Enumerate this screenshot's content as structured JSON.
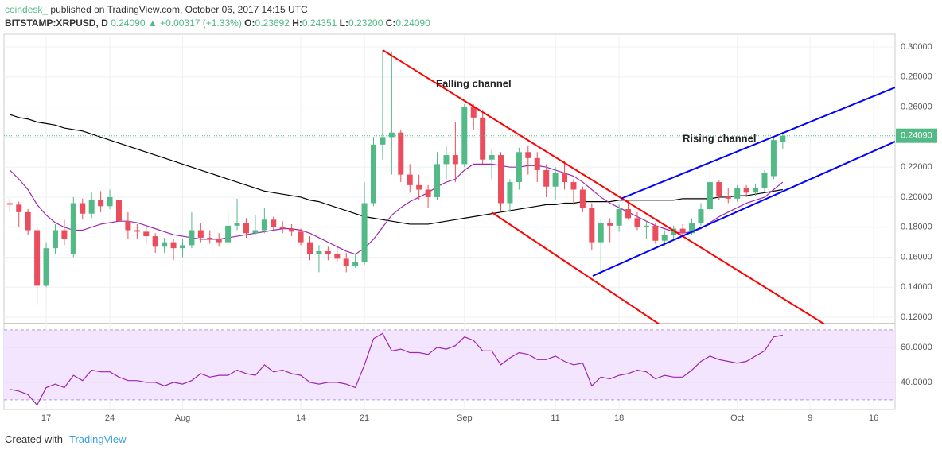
{
  "header": {
    "author": "coindesk_",
    "published": "published on TradingView.com, October 06, 2017 14:15 UTC",
    "symbol": "BITSTAMP:XRPUSD, D",
    "last": "0.24090",
    "change": "▲ +0.00317 (+1.33%)",
    "o_label": "O:",
    "o": "0.23692",
    "h_label": "H:",
    "h": "0.24351",
    "l_label": "L:",
    "l": "0.23200",
    "c_label": "C:",
    "c": "0.24090"
  },
  "footer": {
    "created": "Created with",
    "brand": "TradingView"
  },
  "chart_data": {
    "type": "candlestick",
    "up_color": "#53b987",
    "down_color": "#eb4d5c",
    "ohlc": [
      [
        0.196,
        0.199,
        0.19,
        0.195
      ],
      [
        0.195,
        0.197,
        0.18,
        0.19
      ],
      [
        0.19,
        0.192,
        0.175,
        0.178
      ],
      [
        0.178,
        0.18,
        0.128,
        0.141
      ],
      [
        0.141,
        0.17,
        0.14,
        0.166
      ],
      [
        0.166,
        0.182,
        0.162,
        0.178
      ],
      [
        0.178,
        0.185,
        0.168,
        0.172
      ],
      [
        0.162,
        0.2,
        0.16,
        0.196
      ],
      [
        0.196,
        0.199,
        0.185,
        0.189
      ],
      [
        0.189,
        0.203,
        0.186,
        0.198
      ],
      [
        0.198,
        0.204,
        0.19,
        0.194
      ],
      [
        0.194,
        0.205,
        0.192,
        0.2
      ],
      [
        0.198,
        0.2,
        0.182,
        0.184
      ],
      [
        0.184,
        0.19,
        0.172,
        0.178
      ],
      [
        0.178,
        0.182,
        0.172,
        0.177
      ],
      [
        0.177,
        0.18,
        0.17,
        0.174
      ],
      [
        0.174,
        0.176,
        0.163,
        0.167
      ],
      [
        0.167,
        0.173,
        0.163,
        0.17
      ],
      [
        0.17,
        0.172,
        0.158,
        0.166
      ],
      [
        0.166,
        0.172,
        0.16,
        0.168
      ],
      [
        0.168,
        0.19,
        0.166,
        0.178
      ],
      [
        0.178,
        0.183,
        0.17,
        0.173
      ],
      [
        0.173,
        0.178,
        0.169,
        0.172
      ],
      [
        0.172,
        0.176,
        0.167,
        0.17
      ],
      [
        0.17,
        0.19,
        0.169,
        0.181
      ],
      [
        0.181,
        0.199,
        0.178,
        0.183
      ],
      [
        0.183,
        0.186,
        0.173,
        0.176
      ],
      [
        0.176,
        0.188,
        0.175,
        0.178
      ],
      [
        0.178,
        0.193,
        0.176,
        0.185
      ],
      [
        0.185,
        0.187,
        0.178,
        0.18
      ],
      [
        0.18,
        0.184,
        0.176,
        0.179
      ],
      [
        0.179,
        0.182,
        0.174,
        0.177
      ],
      [
        0.177,
        0.179,
        0.168,
        0.17
      ],
      [
        0.17,
        0.174,
        0.158,
        0.162
      ],
      [
        0.162,
        0.168,
        0.15,
        0.164
      ],
      [
        0.164,
        0.167,
        0.158,
        0.162
      ],
      [
        0.162,
        0.167,
        0.157,
        0.159
      ],
      [
        0.159,
        0.163,
        0.15,
        0.154
      ],
      [
        0.154,
        0.162,
        0.153,
        0.157
      ],
      [
        0.157,
        0.21,
        0.155,
        0.196
      ],
      [
        0.196,
        0.24,
        0.194,
        0.235
      ],
      [
        0.235,
        0.298,
        0.225,
        0.24
      ],
      [
        0.24,
        0.297,
        0.215,
        0.243
      ],
      [
        0.243,
        0.245,
        0.21,
        0.215
      ],
      [
        0.215,
        0.222,
        0.203,
        0.208
      ],
      [
        0.208,
        0.215,
        0.198,
        0.205
      ],
      [
        0.205,
        0.208,
        0.193,
        0.2
      ],
      [
        0.2,
        0.23,
        0.198,
        0.222
      ],
      [
        0.222,
        0.234,
        0.212,
        0.228
      ],
      [
        0.228,
        0.25,
        0.21,
        0.222
      ],
      [
        0.222,
        0.262,
        0.22,
        0.26
      ],
      [
        0.26,
        0.262,
        0.245,
        0.253
      ],
      [
        0.253,
        0.258,
        0.222,
        0.225
      ],
      [
        0.225,
        0.232,
        0.212,
        0.228
      ],
      [
        0.228,
        0.23,
        0.19,
        0.196
      ],
      [
        0.196,
        0.212,
        0.19,
        0.21
      ],
      [
        0.21,
        0.233,
        0.205,
        0.23
      ],
      [
        0.23,
        0.234,
        0.215,
        0.226
      ],
      [
        0.226,
        0.23,
        0.21,
        0.218
      ],
      [
        0.218,
        0.222,
        0.2,
        0.207
      ],
      [
        0.207,
        0.22,
        0.198,
        0.216
      ],
      [
        0.216,
        0.224,
        0.205,
        0.21
      ],
      [
        0.21,
        0.212,
        0.195,
        0.205
      ],
      [
        0.205,
        0.207,
        0.19,
        0.193
      ],
      [
        0.193,
        0.196,
        0.165,
        0.17
      ],
      [
        0.17,
        0.185,
        0.148,
        0.183
      ],
      [
        0.183,
        0.186,
        0.17,
        0.181
      ],
      [
        0.181,
        0.195,
        0.177,
        0.192
      ],
      [
        0.192,
        0.198,
        0.185,
        0.186
      ],
      [
        0.186,
        0.19,
        0.178,
        0.18
      ],
      [
        0.18,
        0.184,
        0.172,
        0.181
      ],
      [
        0.181,
        0.183,
        0.169,
        0.171
      ],
      [
        0.171,
        0.178,
        0.167,
        0.175
      ],
      [
        0.175,
        0.181,
        0.172,
        0.179
      ],
      [
        0.179,
        0.182,
        0.174,
        0.176
      ],
      [
        0.176,
        0.186,
        0.175,
        0.183
      ],
      [
        0.183,
        0.196,
        0.181,
        0.192
      ],
      [
        0.192,
        0.219,
        0.19,
        0.21
      ],
      [
        0.21,
        0.211,
        0.198,
        0.201
      ],
      [
        0.201,
        0.206,
        0.196,
        0.199
      ],
      [
        0.199,
        0.208,
        0.197,
        0.206
      ],
      [
        0.206,
        0.208,
        0.2,
        0.203
      ],
      [
        0.203,
        0.209,
        0.201,
        0.206
      ],
      [
        0.206,
        0.218,
        0.203,
        0.216
      ],
      [
        0.214,
        0.24,
        0.212,
        0.238
      ],
      [
        0.23692,
        0.24351,
        0.232,
        0.2409
      ]
    ],
    "lines": [
      {
        "color": "#000000",
        "values": [
          0.255,
          0.253,
          0.252,
          0.25,
          0.249,
          0.248,
          0.246,
          0.245,
          0.244,
          0.242,
          0.24,
          0.238,
          0.236,
          0.234,
          0.232,
          0.23,
          0.228,
          0.226,
          0.224,
          0.222,
          0.22,
          0.218,
          0.216,
          0.214,
          0.212,
          0.21,
          0.208,
          0.206,
          0.204,
          0.203,
          0.202,
          0.201,
          0.2,
          0.198,
          0.197,
          0.195,
          0.193,
          0.191,
          0.189,
          0.187,
          0.186,
          0.185,
          0.184,
          0.183,
          0.182,
          0.182,
          0.182,
          0.183,
          0.184,
          0.185,
          0.186,
          0.187,
          0.188,
          0.189,
          0.19,
          0.191,
          0.192,
          0.193,
          0.194,
          0.195,
          0.195,
          0.196,
          0.196,
          0.197,
          0.197,
          0.197,
          0.197,
          0.198,
          0.198,
          0.198,
          0.198,
          0.198,
          0.198,
          0.198,
          0.199,
          0.199,
          0.199,
          0.199,
          0.2,
          0.2,
          0.201,
          0.201,
          0.202,
          0.203,
          0.204,
          0.205
        ]
      },
      {
        "color": "#9c27b0",
        "values": [
          0.218,
          0.212,
          0.205,
          0.195,
          0.188,
          0.183,
          0.18,
          0.178,
          0.178,
          0.18,
          0.182,
          0.183,
          0.184,
          0.184,
          0.183,
          0.181,
          0.179,
          0.177,
          0.175,
          0.174,
          0.173,
          0.172,
          0.172,
          0.172,
          0.173,
          0.174,
          0.175,
          0.176,
          0.177,
          0.178,
          0.179,
          0.179,
          0.178,
          0.176,
          0.173,
          0.17,
          0.167,
          0.164,
          0.162,
          0.166,
          0.172,
          0.18,
          0.188,
          0.193,
          0.197,
          0.2,
          0.203,
          0.207,
          0.21,
          0.212,
          0.218,
          0.222,
          0.222,
          0.222,
          0.221,
          0.22,
          0.22,
          0.221,
          0.221,
          0.22,
          0.218,
          0.216,
          0.214,
          0.21,
          0.205,
          0.2,
          0.196,
          0.193,
          0.19,
          0.187,
          0.184,
          0.181,
          0.179,
          0.177,
          0.176,
          0.177,
          0.179,
          0.183,
          0.187,
          0.19,
          0.193,
          0.196,
          0.198,
          0.2,
          0.205,
          0.21
        ]
      }
    ],
    "rsi": {
      "color": "#9c27b0",
      "fill": "#f3e5fd",
      "levels": [
        70,
        30
      ],
      "ylim": [
        24.5,
        73.6
      ],
      "yticks": [
        {
          "value": 60,
          "label": "60.0000"
        },
        {
          "value": 40,
          "label": "40.0000"
        }
      ],
      "values": [
        36,
        35,
        33,
        27,
        37,
        39,
        37,
        44,
        41,
        47,
        46,
        46,
        43,
        41,
        41,
        40,
        40,
        38,
        40,
        39,
        41,
        45,
        43,
        44,
        44,
        47,
        45,
        44,
        50,
        46,
        47,
        45,
        44,
        40,
        39,
        40,
        40,
        39,
        37,
        50,
        65,
        68,
        58,
        59,
        57,
        57,
        56,
        60,
        59,
        61,
        66,
        64,
        58,
        58,
        50,
        54,
        57,
        56,
        53,
        53,
        55,
        52,
        50,
        51,
        38,
        43,
        42,
        44,
        45,
        47,
        46,
        42,
        44,
        43,
        43,
        47,
        52,
        55,
        53,
        52,
        51,
        52,
        55,
        58,
        66,
        67
      ]
    },
    "xlim": [
      -0.64,
      97.35
    ],
    "ylim": [
      0.1158,
      0.3085
    ],
    "xticks": [
      {
        "value": 4,
        "label": "17"
      },
      {
        "value": 11,
        "label": "24"
      },
      {
        "value": 19,
        "label": "Aug"
      },
      {
        "value": 32,
        "label": "14"
      },
      {
        "value": 39,
        "label": "21"
      },
      {
        "value": 50,
        "label": "Sep"
      },
      {
        "value": 60,
        "label": "11"
      },
      {
        "value": 67,
        "label": "18"
      },
      {
        "value": 80,
        "label": "Oct"
      },
      {
        "value": 88,
        "label": "9"
      },
      {
        "value": 95,
        "label": "16"
      }
    ],
    "yticks": [
      {
        "value": 0.12,
        "label": "0.12000"
      },
      {
        "value": 0.14,
        "label": "0.14000"
      },
      {
        "value": 0.16,
        "label": "0.16000"
      },
      {
        "value": 0.18,
        "label": "0.18000"
      },
      {
        "value": 0.2,
        "label": "0.20000"
      },
      {
        "value": 0.22,
        "label": "0.22000"
      },
      {
        "value": 0.24,
        "label": "0.24000"
      },
      {
        "value": 0.26,
        "label": "0.26000"
      },
      {
        "value": 0.28,
        "label": "0.28000"
      },
      {
        "value": 0.3,
        "label": "0.30000"
      }
    ],
    "last_price": {
      "value": 0.2409,
      "label": "0.24090"
    },
    "annotations": [
      "Falling channel",
      "Rising channel"
    ],
    "grid": true
  }
}
